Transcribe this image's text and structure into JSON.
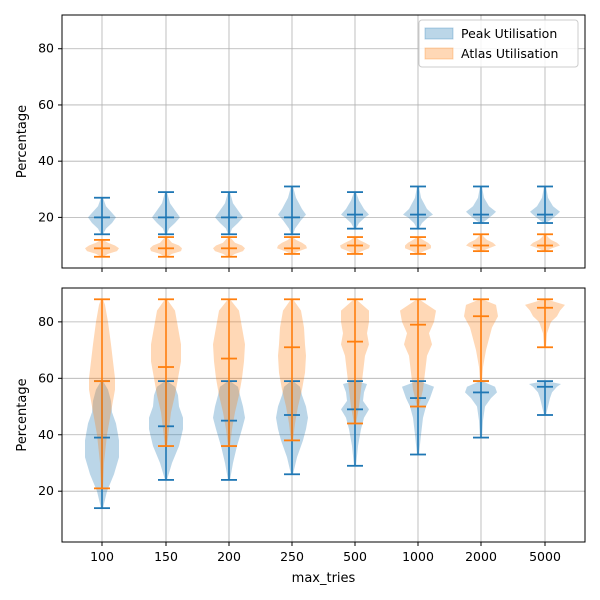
{
  "colors": {
    "peak": "#1f77b4",
    "atlas": "#ff7f0e",
    "peak_fill": "#1f77b4",
    "atlas_fill": "#ff7f0e",
    "grid": "#b0b0b0"
  },
  "chart_data": [
    {
      "type": "violin",
      "xlabel": "",
      "ylabel": "Percentage",
      "ylim": [
        2,
        92
      ],
      "yticks": [
        20,
        40,
        60,
        80
      ],
      "grid": true,
      "legend_position": "top-right",
      "categories": [
        "100",
        "150",
        "200",
        "250",
        "500",
        "1000",
        "2000",
        "5000"
      ],
      "series": [
        {
          "name": "Peak Utilisation",
          "color_key": "peak",
          "min": [
            14,
            14,
            14,
            14,
            16,
            16,
            18,
            18
          ],
          "median": [
            20,
            20,
            20,
            20,
            21,
            21,
            21,
            21
          ],
          "max": [
            27,
            29,
            29,
            31,
            29,
            31,
            31,
            31
          ]
        },
        {
          "name": "Atlas Utilisation",
          "color_key": "atlas",
          "min": [
            6,
            6,
            6,
            7,
            7,
            7,
            8,
            8
          ],
          "median": [
            9,
            9,
            9,
            9,
            10,
            10,
            10,
            10
          ],
          "max": [
            12,
            13,
            13,
            13,
            13,
            13,
            14,
            14
          ]
        }
      ]
    },
    {
      "type": "violin",
      "xlabel": "max_tries",
      "ylabel": "Percentage",
      "ylim": [
        2,
        92
      ],
      "yticks": [
        20,
        40,
        60,
        80
      ],
      "grid": true,
      "categories": [
        "100",
        "150",
        "200",
        "250",
        "500",
        "1000",
        "2000",
        "5000"
      ],
      "series": [
        {
          "name": "Peak Utilisation",
          "color_key": "peak",
          "min": [
            14,
            24,
            24,
            26,
            29,
            33,
            39,
            47
          ],
          "median": [
            39,
            43,
            45,
            47,
            49,
            53,
            55,
            57
          ],
          "max": [
            59,
            59,
            59,
            59,
            59,
            59,
            59,
            59
          ]
        },
        {
          "name": "Atlas Utilisation",
          "color_key": "atlas",
          "min": [
            21,
            36,
            36,
            38,
            44,
            50,
            59,
            71
          ],
          "median": [
            59,
            64,
            67,
            71,
            73,
            79,
            82,
            85
          ],
          "max": [
            88,
            88,
            88,
            88,
            88,
            88,
            88,
            88
          ]
        }
      ]
    }
  ]
}
